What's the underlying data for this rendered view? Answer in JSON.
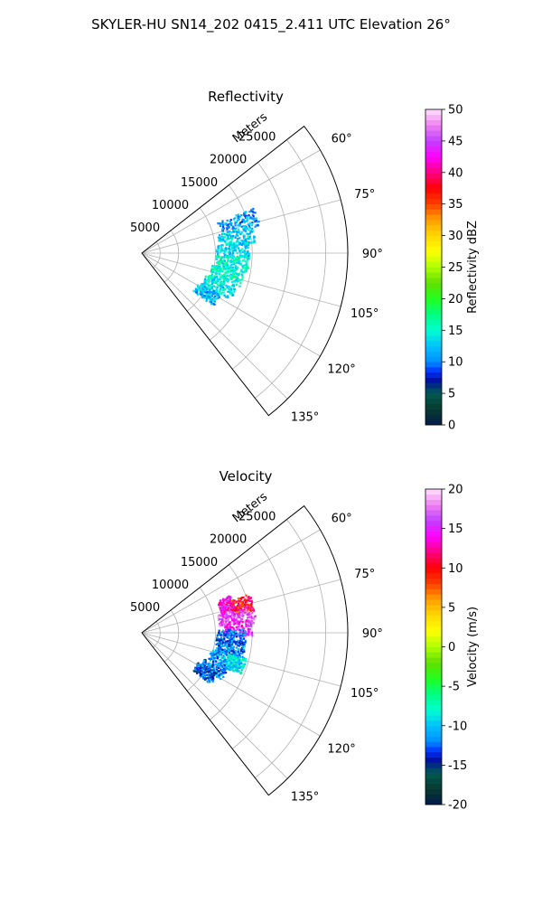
{
  "figure": {
    "title": "SKYLER-HU  SN14_202  0415_2.411 UTC Elevation 26°"
  },
  "chart_data": [
    {
      "type": "polar-sector-scatter",
      "title": "Reflectivity",
      "radial_label": "Meters",
      "radial_ticks": [
        5000,
        10000,
        15000,
        20000,
        25000
      ],
      "radial_max": 28000,
      "angle_ticks": [
        "60°",
        "75°",
        "90°",
        "105°",
        "120°",
        "135°"
      ],
      "angle_range_deg": [
        52,
        142
      ],
      "colorbar": {
        "label": "Reflectivity dBZ",
        "ticks": [
          0,
          5,
          10,
          15,
          20,
          25,
          30,
          35,
          40,
          45,
          50
        ],
        "range": [
          0,
          50
        ]
      },
      "clusters": [
        {
          "az_deg": 72,
          "range_m": [
            11000,
            16500
          ],
          "value": 11
        },
        {
          "az_deg": 80,
          "range_m": [
            10500,
            15500
          ],
          "value": 13
        },
        {
          "az_deg": 88,
          "range_m": [
            10000,
            14500
          ],
          "value": 13
        },
        {
          "az_deg": 96,
          "range_m": [
            10000,
            14500
          ],
          "value": 15
        },
        {
          "az_deg": 104,
          "range_m": [
            9500,
            14000
          ],
          "value": 15
        },
        {
          "az_deg": 113,
          "range_m": [
            9000,
            13500
          ],
          "value": 14
        },
        {
          "az_deg": 122,
          "range_m": [
            8500,
            12000
          ],
          "value": 12
        }
      ]
    },
    {
      "type": "polar-sector-scatter",
      "title": "Velocity",
      "radial_label": "Meters",
      "radial_ticks": [
        5000,
        10000,
        15000,
        20000,
        25000
      ],
      "radial_max": 28000,
      "angle_ticks": [
        "60°",
        "75°",
        "90°",
        "105°",
        "120°",
        "135°"
      ],
      "angle_range_deg": [
        52,
        142
      ],
      "colorbar": {
        "label": "Velocity (m/s)",
        "ticks": [
          -20,
          -15,
          -10,
          -5,
          0,
          5,
          10,
          15,
          20
        ],
        "range": [
          -20,
          20
        ]
      },
      "clusters": [
        {
          "az_deg": 71,
          "range_m": [
            11000,
            13000
          ],
          "value": 14
        },
        {
          "az_deg": 74,
          "range_m": [
            12500,
            15500
          ],
          "value": 10
        },
        {
          "az_deg": 80,
          "range_m": [
            10500,
            15500
          ],
          "value": 16
        },
        {
          "az_deg": 87,
          "range_m": [
            11000,
            15000
          ],
          "value": 15
        },
        {
          "az_deg": 92,
          "range_m": [
            10000,
            14000
          ],
          "value": -12
        },
        {
          "az_deg": 99,
          "range_m": [
            10000,
            14000
          ],
          "value": -12
        },
        {
          "az_deg": 107,
          "range_m": [
            9500,
            13000
          ],
          "value": -11
        },
        {
          "az_deg": 108,
          "range_m": [
            12000,
            14500
          ],
          "value": -9
        },
        {
          "az_deg": 116,
          "range_m": [
            9000,
            12500
          ],
          "value": -12
        },
        {
          "az_deg": 122,
          "range_m": [
            8500,
            11500
          ],
          "value": -13
        }
      ]
    }
  ]
}
